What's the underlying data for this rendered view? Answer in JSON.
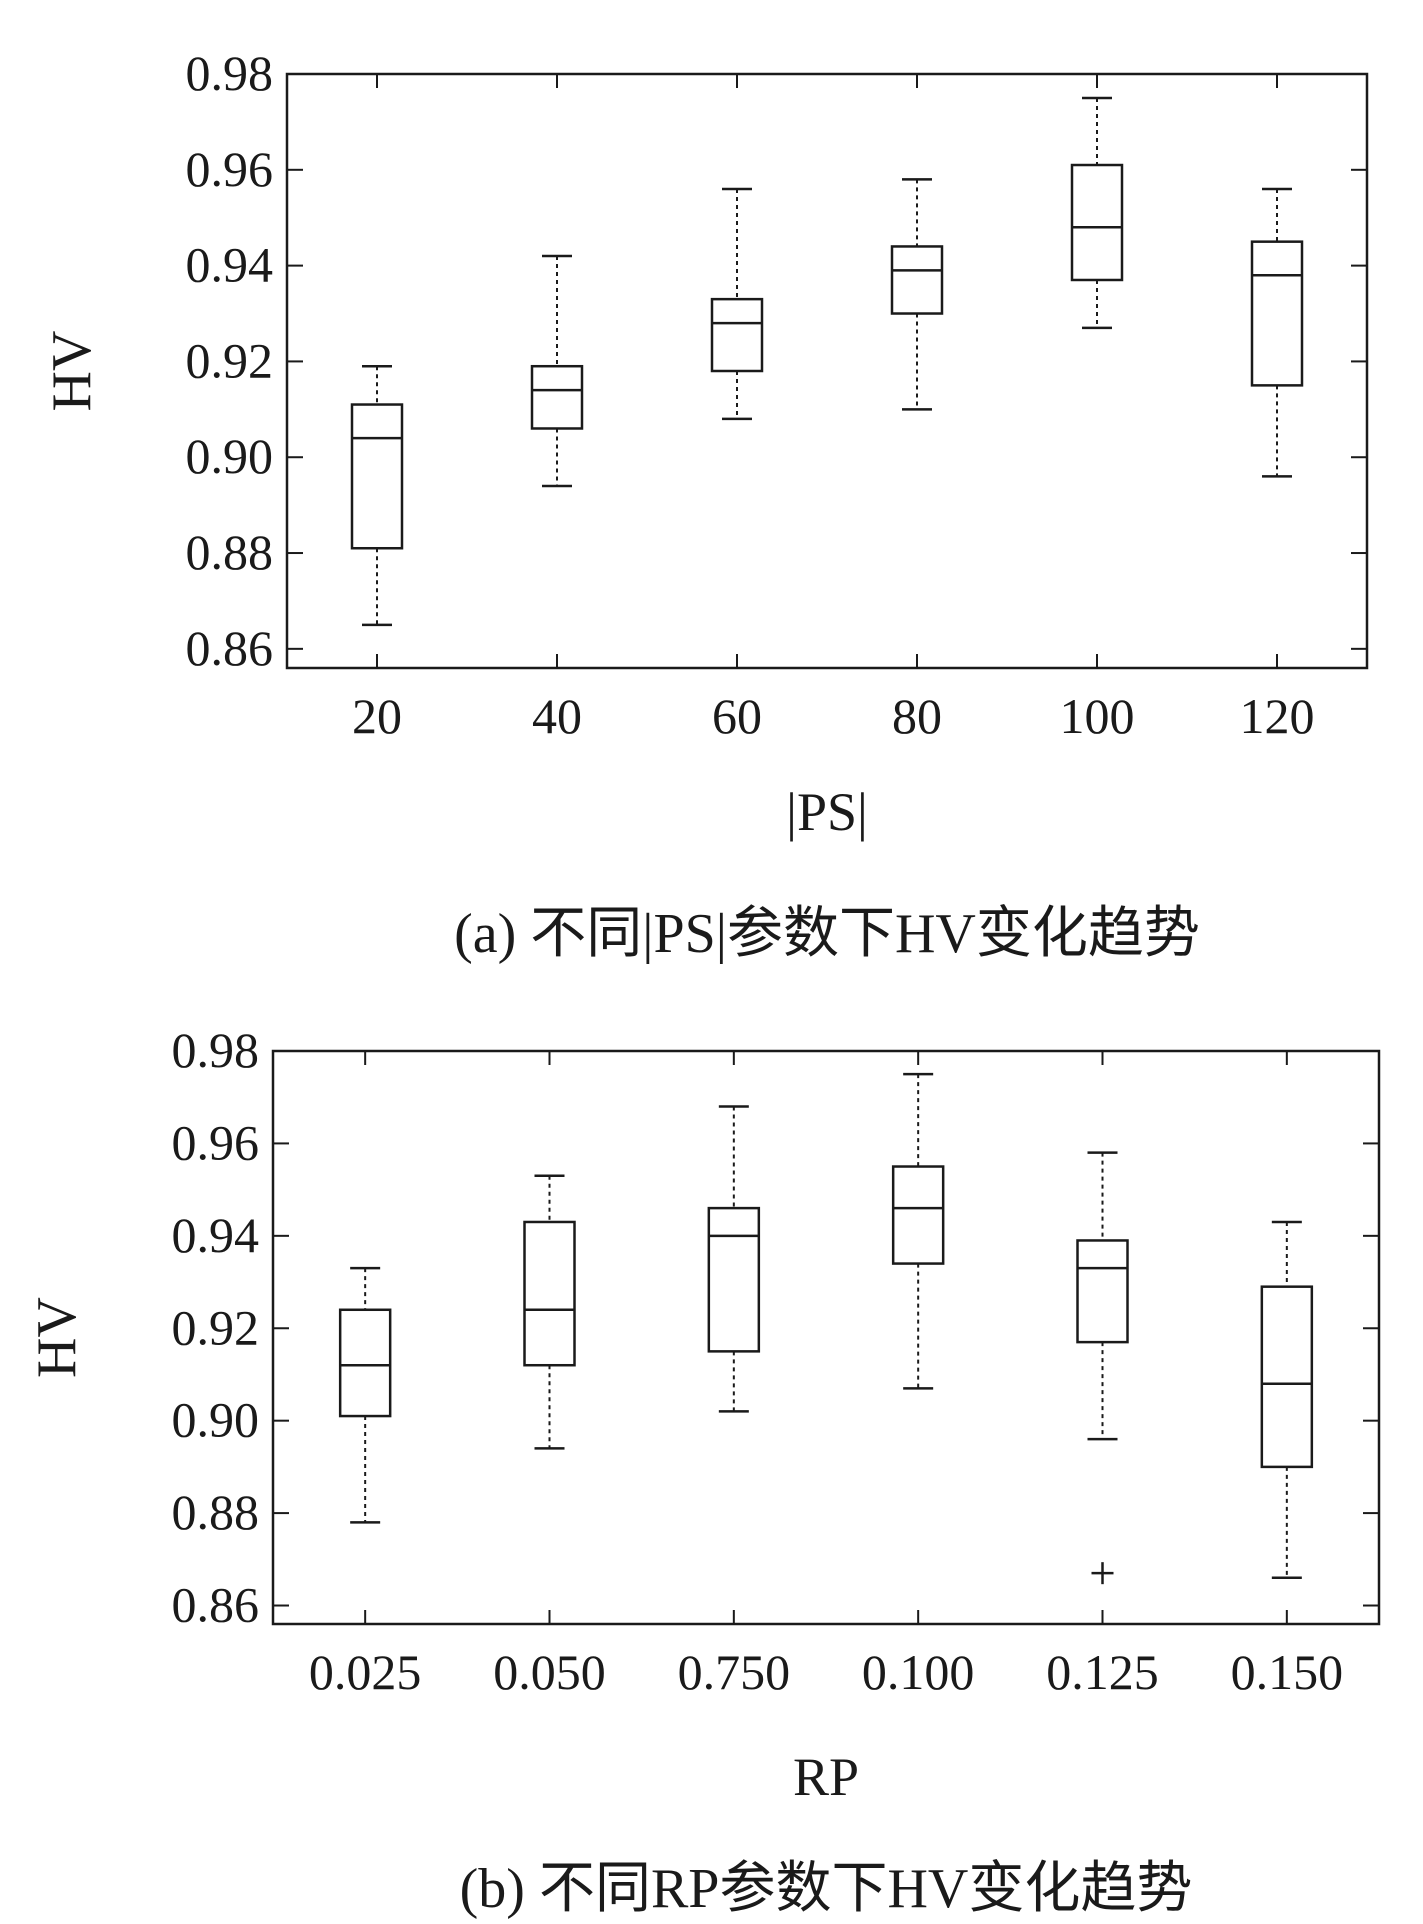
{
  "chart_data": [
    {
      "type": "box",
      "caption": "(a) 不同|PS|参数下HV变化趋势",
      "xlabel": "|PS|",
      "ylabel": "HV",
      "ylim": [
        0.856,
        0.98
      ],
      "yticks": [
        "0.98",
        "0.96",
        "0.94",
        "0.92",
        "0.90",
        "0.88",
        "0.86"
      ],
      "categories": [
        "20",
        "40",
        "60",
        "80",
        "100",
        "120"
      ],
      "boxes": [
        {
          "whisker_low": 0.865,
          "q1": 0.881,
          "median": 0.904,
          "q3": 0.911,
          "whisker_high": 0.919,
          "outliers": []
        },
        {
          "whisker_low": 0.894,
          "q1": 0.906,
          "median": 0.914,
          "q3": 0.919,
          "whisker_high": 0.942,
          "outliers": []
        },
        {
          "whisker_low": 0.908,
          "q1": 0.918,
          "median": 0.928,
          "q3": 0.933,
          "whisker_high": 0.956,
          "outliers": []
        },
        {
          "whisker_low": 0.91,
          "q1": 0.93,
          "median": 0.939,
          "q3": 0.944,
          "whisker_high": 0.958,
          "outliers": []
        },
        {
          "whisker_low": 0.927,
          "q1": 0.937,
          "median": 0.948,
          "q3": 0.961,
          "whisker_high": 0.975,
          "outliers": []
        },
        {
          "whisker_low": 0.896,
          "q1": 0.915,
          "median": 0.938,
          "q3": 0.945,
          "whisker_high": 0.956,
          "outliers": []
        }
      ]
    },
    {
      "type": "box",
      "caption": "(b) 不同RP参数下HV变化趋势",
      "xlabel": "RP",
      "ylabel": "HV",
      "ylim": [
        0.856,
        0.98
      ],
      "yticks": [
        "0.98",
        "0.96",
        "0.94",
        "0.92",
        "0.90",
        "0.88",
        "0.86"
      ],
      "categories": [
        "0.025",
        "0.050",
        "0.750",
        "0.100",
        "0.125",
        "0.150"
      ],
      "boxes": [
        {
          "whisker_low": 0.878,
          "q1": 0.901,
          "median": 0.912,
          "q3": 0.924,
          "whisker_high": 0.933,
          "outliers": []
        },
        {
          "whisker_low": 0.894,
          "q1": 0.912,
          "median": 0.924,
          "q3": 0.943,
          "whisker_high": 0.953,
          "outliers": []
        },
        {
          "whisker_low": 0.902,
          "q1": 0.915,
          "median": 0.94,
          "q3": 0.946,
          "whisker_high": 0.968,
          "outliers": []
        },
        {
          "whisker_low": 0.907,
          "q1": 0.934,
          "median": 0.946,
          "q3": 0.955,
          "whisker_high": 0.975,
          "outliers": []
        },
        {
          "whisker_low": 0.896,
          "q1": 0.917,
          "median": 0.933,
          "q3": 0.939,
          "whisker_high": 0.958,
          "outliers": [
            0.867
          ]
        },
        {
          "whisker_low": 0.866,
          "q1": 0.89,
          "median": 0.908,
          "q3": 0.929,
          "whisker_high": 0.943,
          "outliers": []
        }
      ]
    }
  ]
}
